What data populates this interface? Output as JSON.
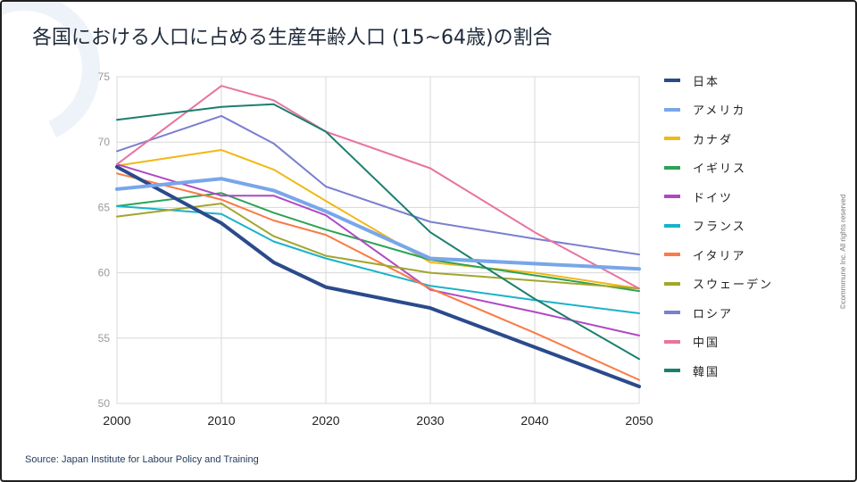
{
  "title": "各国における人口に占める生産年齢人口 (15~64歳)の割合",
  "source": "Source: Japan Institute for Labour Policy and Training",
  "copyright": "©commmune Inc. All rights reserved",
  "chart_data": {
    "type": "line",
    "x": [
      2000,
      2010,
      2015,
      2020,
      2030,
      2040,
      2050
    ],
    "xticks": [
      2000,
      2010,
      2020,
      2030,
      2040,
      2050
    ],
    "yticks": [
      50,
      55,
      60,
      65,
      70,
      75
    ],
    "xlim": [
      2000,
      2050
    ],
    "ylim": [
      50,
      75
    ],
    "grid": true,
    "legend_position": "right",
    "series": [
      {
        "name": "日本",
        "color": "#2b4a8c",
        "emphasis": true,
        "values": [
          68.1,
          63.8,
          60.8,
          58.9,
          57.3,
          54.3,
          51.3
        ]
      },
      {
        "name": "アメリカ",
        "color": "#79a6ea",
        "emphasis": true,
        "values": [
          66.4,
          67.2,
          66.3,
          64.7,
          61.1,
          60.7,
          60.3
        ]
      },
      {
        "name": "カナダ",
        "color": "#f2b817",
        "emphasis": false,
        "values": [
          68.2,
          69.4,
          67.9,
          65.5,
          60.8,
          60.0,
          58.8
        ]
      },
      {
        "name": "イギリス",
        "color": "#2ea356",
        "emphasis": false,
        "values": [
          65.1,
          66.1,
          64.6,
          63.3,
          61.0,
          59.8,
          58.6
        ]
      },
      {
        "name": "ドイツ",
        "color": "#b048c4",
        "emphasis": false,
        "values": [
          68.3,
          65.9,
          65.9,
          64.4,
          58.7,
          57.0,
          55.2
        ]
      },
      {
        "name": "フランス",
        "color": "#19b3c9",
        "emphasis": false,
        "values": [
          65.1,
          64.5,
          62.4,
          61.1,
          59.0,
          57.9,
          56.9
        ]
      },
      {
        "name": "イタリア",
        "color": "#fb7a45",
        "emphasis": false,
        "values": [
          67.6,
          65.6,
          64.0,
          62.9,
          58.8,
          55.4,
          51.8
        ]
      },
      {
        "name": "スウェーデン",
        "color": "#a3a52e",
        "emphasis": false,
        "values": [
          64.3,
          65.3,
          62.8,
          61.3,
          60.0,
          59.4,
          58.8
        ]
      },
      {
        "name": "ロシア",
        "color": "#7a7fcf",
        "emphasis": false,
        "values": [
          69.3,
          72.0,
          69.9,
          66.6,
          63.9,
          62.6,
          61.4
        ]
      },
      {
        "name": "中国",
        "color": "#e8739f",
        "emphasis": false,
        "values": [
          68.3,
          74.3,
          73.2,
          70.8,
          68.0,
          63.1,
          58.8
        ]
      },
      {
        "name": "韓国",
        "color": "#1b7f6e",
        "emphasis": false,
        "values": [
          71.7,
          72.7,
          72.9,
          70.8,
          63.1,
          58.0,
          53.4
        ]
      }
    ]
  }
}
